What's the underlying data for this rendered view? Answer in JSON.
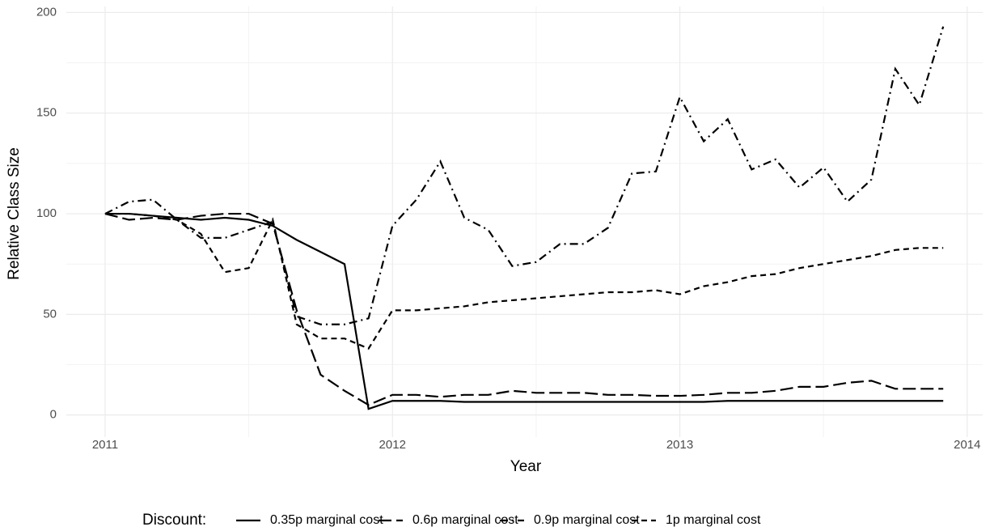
{
  "chart_data": {
    "type": "line",
    "xlabel": "Year",
    "ylabel": "Relative Class Size",
    "legend_title": "Discount:",
    "legend_position": "bottom",
    "grid": true,
    "xlim": [
      2010.865,
      2014.054
    ],
    "xticks": [
      2011,
      2012,
      2013,
      2014
    ],
    "ylim": [
      -11,
      203
    ],
    "yticks": [
      0,
      50,
      100,
      150,
      200
    ],
    "x": [
      2011,
      2011.0833,
      2011.1667,
      2011.25,
      2011.3333,
      2011.4167,
      2011.5,
      2011.5833,
      2011.6667,
      2011.75,
      2011.8333,
      2011.9167,
      2012,
      2012.0833,
      2012.1667,
      2012.25,
      2012.3333,
      2012.4167,
      2012.5,
      2012.5833,
      2012.6667,
      2012.75,
      2012.8333,
      2012.9167,
      2013,
      2013.0833,
      2013.1667,
      2013.25,
      2013.3333,
      2013.4167,
      2013.5,
      2013.5833,
      2013.6667,
      2013.75,
      2013.8333,
      2013.9167
    ],
    "series": [
      {
        "name": "0.35p marginal cost",
        "color": "#000000",
        "dash": "none",
        "values": [
          100,
          100,
          99,
          98,
          97,
          98,
          97,
          94,
          87,
          81,
          75,
          3,
          7,
          7,
          7,
          6.5,
          6.5,
          6.5,
          6.5,
          6.5,
          6.5,
          6.5,
          6.5,
          6.5,
          6.5,
          6.5,
          7,
          7,
          7,
          7,
          7,
          7,
          7,
          7,
          7,
          7
        ]
      },
      {
        "name": "0.6p marginal cost",
        "color": "#000000",
        "dash": "16 6",
        "values": [
          100,
          97,
          98,
          97,
          99,
          100,
          100,
          95,
          52,
          20,
          12,
          5,
          10,
          10,
          9,
          10,
          10,
          12,
          11,
          11,
          11,
          10,
          10,
          9.5,
          9.5,
          10,
          11,
          11,
          12,
          14,
          14,
          16,
          17,
          13,
          13,
          13
        ]
      },
      {
        "name": "0.9p marginal cost",
        "color": "#000000",
        "dash": "10 5 2 5",
        "values": [
          100,
          106,
          107,
          97,
          88,
          88,
          92,
          96,
          49,
          45,
          45,
          48,
          94,
          107,
          126,
          98,
          92,
          74,
          76,
          85,
          85,
          93,
          120,
          121,
          158,
          136,
          147,
          122,
          127,
          113,
          123,
          106,
          117,
          172,
          154,
          193
        ]
      },
      {
        "name": "1p marginal cost",
        "color": "#000000",
        "dash": "7 5",
        "values": [
          100,
          100,
          99,
          97,
          90,
          71,
          73,
          97,
          45,
          38,
          38,
          33,
          52,
          52,
          53,
          54,
          56,
          57,
          58,
          59,
          60,
          61,
          61,
          62,
          60,
          64,
          66,
          69,
          70,
          73,
          75,
          77,
          79,
          82,
          83,
          83
        ]
      }
    ]
  }
}
